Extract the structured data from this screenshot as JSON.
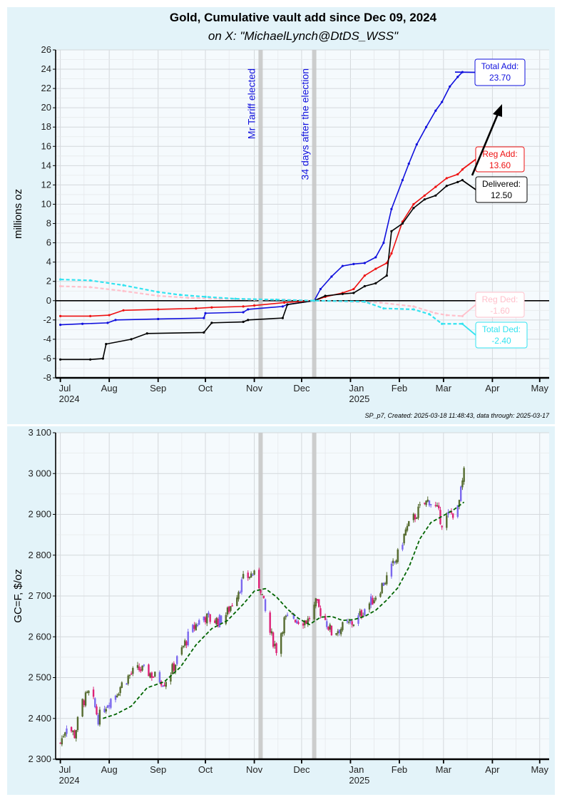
{
  "title": "Gold, Cumulative vault add since Dec 09, 2024",
  "subtitle": "on X:   \"MichaelLynch@DtDS_WSS\"",
  "caption": "SP_p7, Created: 2025-03-18 11:48:43, data through: 2025-03-17",
  "colors": {
    "panel_bg": "#e3f3f9",
    "plot_bg": "#f5fafd",
    "grid": "#d4d8dc",
    "total_add": "#1010dd",
    "reg_add": "#ee1111",
    "delivered": "#000000",
    "reg_ded": "#ffc0cb",
    "total_ded": "#33e3f0",
    "event_line": "#c8c8c8",
    "candle_up": "#556b2f",
    "candle_down": "#dd2277",
    "candle_alt": "#7b68ee",
    "ma_line": "#006400"
  },
  "chart_data": [
    {
      "type": "line",
      "ylabel": "millions oz",
      "ylim": [
        -8,
        26
      ],
      "yticks": [
        "-8",
        "-6",
        "-4",
        "-2",
        "0",
        "2",
        "4",
        "6",
        "8",
        "10",
        "12",
        "14",
        "16",
        "18",
        "20",
        "22",
        "24",
        "26"
      ],
      "xlim": [
        "2024-06-28",
        "2025-05-07"
      ],
      "xticks": [
        {
          "date": "2024-07-01",
          "label": "Jul",
          "year": "2024"
        },
        {
          "date": "2024-08-01",
          "label": "Aug",
          "year": ""
        },
        {
          "date": "2024-09-01",
          "label": "Sep",
          "year": ""
        },
        {
          "date": "2024-10-01",
          "label": "Oct",
          "year": ""
        },
        {
          "date": "2024-11-01",
          "label": "Nov",
          "year": ""
        },
        {
          "date": "2024-12-01",
          "label": "Dec",
          "year": ""
        },
        {
          "date": "2025-01-01",
          "label": "Jan",
          "year": "2025"
        },
        {
          "date": "2025-02-01",
          "label": "Feb",
          "year": ""
        },
        {
          "date": "2025-03-01",
          "label": "Mar",
          "year": ""
        },
        {
          "date": "2025-04-01",
          "label": "Apr",
          "year": ""
        },
        {
          "date": "2025-05-01",
          "label": "May",
          "year": ""
        }
      ],
      "events": [
        {
          "date": "2024-11-05",
          "label": "Mr Tariff elected"
        },
        {
          "date": "2024-12-09",
          "label": "34 days after the election"
        }
      ],
      "series": [
        {
          "name": "Total Add:",
          "value_label": "23.70",
          "key": "total_add",
          "x": [
            "2024-07-01",
            "2024-07-15",
            "2024-07-31",
            "2024-08-05",
            "2024-09-01",
            "2024-09-30",
            "2024-10-01",
            "2024-10-25",
            "2024-10-28",
            "2024-11-19",
            "2024-11-22",
            "2024-12-09",
            "2024-12-13",
            "2024-12-20",
            "2024-12-27",
            "2025-01-03",
            "2025-01-10",
            "2025-01-17",
            "2025-01-22",
            "2025-01-27",
            "2025-02-03",
            "2025-02-07",
            "2025-02-12",
            "2025-02-18",
            "2025-02-24",
            "2025-02-28",
            "2025-03-05",
            "2025-03-10",
            "2025-03-13"
          ],
          "y": [
            -2.5,
            -2.4,
            -2.3,
            -2.0,
            -1.9,
            -1.8,
            -1.3,
            -1.2,
            -0.9,
            -0.6,
            -0.4,
            0,
            1.2,
            2.5,
            3.6,
            3.8,
            3.9,
            4.5,
            6.0,
            9.5,
            12.5,
            14.2,
            16.2,
            18.0,
            19.7,
            20.6,
            22.2,
            23.2,
            23.7
          ]
        },
        {
          "name": "Reg Add:",
          "value_label": "13.60",
          "key": "reg_add",
          "x": [
            "2024-07-01",
            "2024-07-20",
            "2024-08-01",
            "2024-08-10",
            "2024-09-01",
            "2024-09-25",
            "2024-10-05",
            "2024-10-25",
            "2024-11-01",
            "2024-11-20",
            "2024-12-09",
            "2024-12-16",
            "2024-12-27",
            "2025-01-03",
            "2025-01-10",
            "2025-01-17",
            "2025-01-24",
            "2025-01-27",
            "2025-02-03",
            "2025-02-10",
            "2025-02-17",
            "2025-02-24",
            "2025-03-03",
            "2025-03-10",
            "2025-03-13"
          ],
          "y": [
            -1.6,
            -1.6,
            -1.5,
            -1.0,
            -0.9,
            -0.8,
            -0.7,
            -0.6,
            -0.5,
            -0.2,
            0,
            0.4,
            0.8,
            1.2,
            2.6,
            3.3,
            3.9,
            4.9,
            8.2,
            10.0,
            10.9,
            11.8,
            12.7,
            13.1,
            13.6
          ]
        },
        {
          "name": "Delivered:",
          "value_label": "12.50",
          "key": "delivered",
          "x": [
            "2024-07-01",
            "2024-07-20",
            "2024-07-28",
            "2024-07-30",
            "2024-08-15",
            "2024-08-25",
            "2024-09-30",
            "2024-10-05",
            "2024-10-25",
            "2024-10-28",
            "2024-11-19",
            "2024-11-22",
            "2024-12-09",
            "2024-12-16",
            "2024-12-27",
            "2025-01-03",
            "2025-01-10",
            "2025-01-17",
            "2025-01-24",
            "2025-01-27",
            "2025-02-03",
            "2025-02-10",
            "2025-02-17",
            "2025-02-24",
            "2025-03-03",
            "2025-03-10",
            "2025-03-13"
          ],
          "y": [
            -6.1,
            -6.1,
            -6.0,
            -4.5,
            -4.0,
            -3.4,
            -3.3,
            -2.3,
            -2.2,
            -2.0,
            -1.8,
            -0.4,
            0,
            0.5,
            0.7,
            0.8,
            1.5,
            1.8,
            2.6,
            7.2,
            8.0,
            9.6,
            10.5,
            10.9,
            11.9,
            12.3,
            12.5
          ]
        },
        {
          "name": "Reg Ded:",
          "value_label": "-1.60",
          "key": "reg_ded",
          "x": [
            "2024-07-01",
            "2024-07-20",
            "2024-08-10",
            "2024-09-01",
            "2024-09-20",
            "2024-10-10",
            "2024-11-01",
            "2024-11-20",
            "2024-12-09",
            "2025-01-20",
            "2025-02-10",
            "2025-02-24",
            "2025-03-03",
            "2025-03-13"
          ],
          "y": [
            1.5,
            1.4,
            1.0,
            0.5,
            0.3,
            0.2,
            0.1,
            0.1,
            0,
            -0.2,
            -0.6,
            -1.3,
            -1.5,
            -1.6
          ]
        },
        {
          "name": "Total Ded:",
          "value_label": "-2.40",
          "key": "total_ded",
          "x": [
            "2024-07-01",
            "2024-07-20",
            "2024-08-10",
            "2024-09-01",
            "2024-09-15",
            "2024-10-01",
            "2024-10-20",
            "2024-11-15",
            "2024-12-09",
            "2025-01-10",
            "2025-01-22",
            "2025-02-10",
            "2025-02-20",
            "2025-02-28",
            "2025-03-13"
          ],
          "y": [
            2.2,
            2.1,
            1.6,
            0.9,
            0.6,
            0.4,
            0.2,
            0.1,
            0,
            -0.1,
            -0.8,
            -0.9,
            -1.4,
            -2.4,
            -2.4
          ]
        }
      ]
    },
    {
      "type": "candlestick",
      "ylabel": "GC=F,  $/oz",
      "ylim": [
        2300,
        3100
      ],
      "yticks": [
        "2 300",
        "2 400",
        "2 500",
        "2 600",
        "2 700",
        "2 800",
        "2 900",
        "3 000",
        "3 100"
      ],
      "close_x": [
        "2024-07-01",
        "2024-07-05",
        "2024-07-10",
        "2024-07-15",
        "2024-07-20",
        "2024-07-25",
        "2024-07-31",
        "2024-08-05",
        "2024-08-10",
        "2024-08-15",
        "2024-08-20",
        "2024-08-25",
        "2024-08-31",
        "2024-09-05",
        "2024-09-10",
        "2024-09-15",
        "2024-09-20",
        "2024-09-25",
        "2024-09-30",
        "2024-10-05",
        "2024-10-10",
        "2024-10-15",
        "2024-10-20",
        "2024-10-25",
        "2024-10-31",
        "2024-11-05",
        "2024-11-10",
        "2024-11-15",
        "2024-11-20",
        "2024-11-25",
        "2024-11-30",
        "2024-12-05",
        "2024-12-10",
        "2024-12-15",
        "2024-12-20",
        "2024-12-25",
        "2024-12-31",
        "2025-01-05",
        "2025-01-10",
        "2025-01-15",
        "2025-01-20",
        "2025-01-25",
        "2025-01-31",
        "2025-02-05",
        "2025-02-10",
        "2025-02-15",
        "2025-02-20",
        "2025-02-25",
        "2025-02-28",
        "2025-03-05",
        "2025-03-10",
        "2025-03-14"
      ],
      "close_y": [
        2340,
        2385,
        2360,
        2440,
        2465,
        2400,
        2440,
        2460,
        2490,
        2510,
        2520,
        2515,
        2500,
        2490,
        2520,
        2560,
        2600,
        2630,
        2650,
        2640,
        2640,
        2660,
        2700,
        2740,
        2755,
        2720,
        2620,
        2570,
        2640,
        2650,
        2640,
        2640,
        2680,
        2650,
        2610,
        2620,
        2630,
        2640,
        2670,
        2690,
        2720,
        2750,
        2800,
        2860,
        2890,
        2920,
        2935,
        2910,
        2880,
        2900,
        2910,
        3000
      ],
      "ma_x": [
        "2024-07-28",
        "2024-08-05",
        "2024-08-15",
        "2024-08-25",
        "2024-09-05",
        "2024-09-15",
        "2024-09-25",
        "2024-10-05",
        "2024-10-15",
        "2024-10-25",
        "2024-11-01",
        "2024-11-08",
        "2024-11-15",
        "2024-11-22",
        "2024-11-29",
        "2024-12-06",
        "2024-12-13",
        "2024-12-20",
        "2024-12-27",
        "2025-01-03",
        "2025-01-10",
        "2025-01-17",
        "2025-01-24",
        "2025-01-31",
        "2025-02-07",
        "2025-02-14",
        "2025-02-21",
        "2025-02-28",
        "2025-03-07",
        "2025-03-14"
      ],
      "ma_y": [
        2400,
        2410,
        2430,
        2475,
        2490,
        2525,
        2580,
        2620,
        2640,
        2680,
        2712,
        2718,
        2698,
        2668,
        2645,
        2630,
        2648,
        2650,
        2640,
        2642,
        2650,
        2665,
        2690,
        2720,
        2770,
        2840,
        2880,
        2895,
        2910,
        2930
      ]
    }
  ]
}
